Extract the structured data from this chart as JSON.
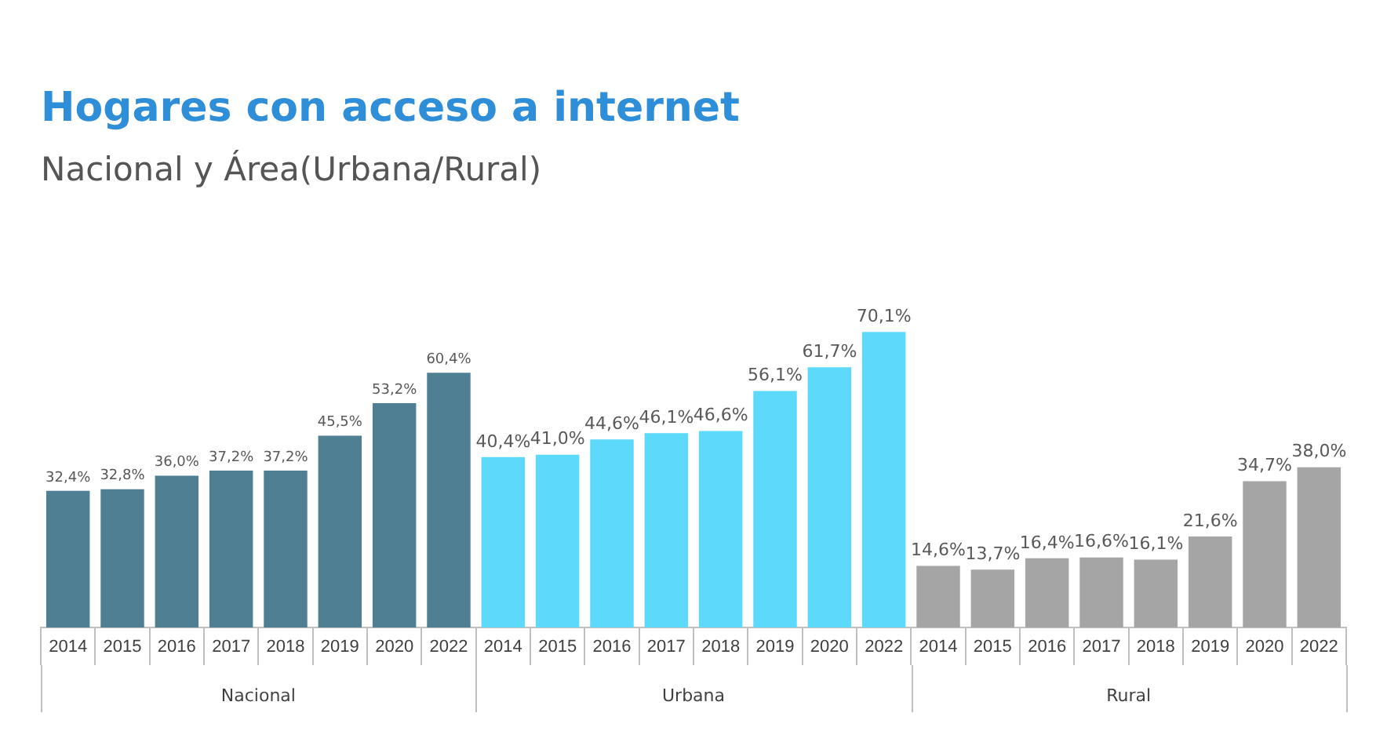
{
  "chart_data": {
    "type": "bar",
    "title": "Hogares con acceso a internet",
    "subtitle": "Nacional  y Área(Urbana/Rural)",
    "categories": [
      "2014",
      "2015",
      "2016",
      "2017",
      "2018",
      "2019",
      "2020",
      "2022",
      "2014",
      "2015",
      "2016",
      "2017",
      "2018",
      "2019",
      "2020",
      "2022",
      "2014",
      "2015",
      "2016",
      "2017",
      "2018",
      "2019",
      "2020",
      "2022"
    ],
    "series": [
      {
        "name": "Nacional",
        "color": "#4f7f93",
        "values": [
          32.4,
          32.8,
          36.0,
          37.2,
          37.2,
          45.5,
          53.2,
          60.4,
          null,
          null,
          null,
          null,
          null,
          null,
          null,
          null,
          null,
          null,
          null,
          null,
          null,
          null,
          null,
          null
        ],
        "value_labels": [
          "32,4%",
          "32,8%",
          "36,0%",
          "37,2%",
          "37,2%",
          "45,5%",
          "53,2%",
          "60,4%",
          null,
          null,
          null,
          null,
          null,
          null,
          null,
          null,
          null,
          null,
          null,
          null,
          null,
          null,
          null,
          null
        ]
      },
      {
        "name": "Urbana",
        "color": "#5dd9fc",
        "values": [
          null,
          null,
          null,
          null,
          null,
          null,
          null,
          null,
          40.4,
          41.0,
          44.6,
          46.1,
          46.6,
          56.1,
          61.7,
          70.1,
          null,
          null,
          null,
          null,
          null,
          null,
          null,
          null
        ],
        "value_labels": [
          null,
          null,
          null,
          null,
          null,
          null,
          null,
          null,
          "40,4%",
          "41,0%",
          "44,6%",
          "46,1%",
          "46,6%",
          "56,1%",
          "61,7%",
          "70,1%",
          null,
          null,
          null,
          null,
          null,
          null,
          null,
          null
        ]
      },
      {
        "name": "Rural",
        "color": "#a5a5a5",
        "values": [
          null,
          null,
          null,
          null,
          null,
          null,
          null,
          null,
          null,
          null,
          null,
          null,
          null,
          null,
          null,
          null,
          14.6,
          13.7,
          16.4,
          16.6,
          16.1,
          21.6,
          34.7,
          38.0
        ],
        "value_labels": [
          null,
          null,
          null,
          null,
          null,
          null,
          null,
          null,
          null,
          null,
          null,
          null,
          null,
          null,
          null,
          null,
          "14,6%",
          "13,7%",
          "16,4%",
          "16,6%",
          "16,1%",
          "21,6%",
          "34,7%",
          "38,0%"
        ]
      }
    ],
    "grid": false,
    "legend": false
  }
}
